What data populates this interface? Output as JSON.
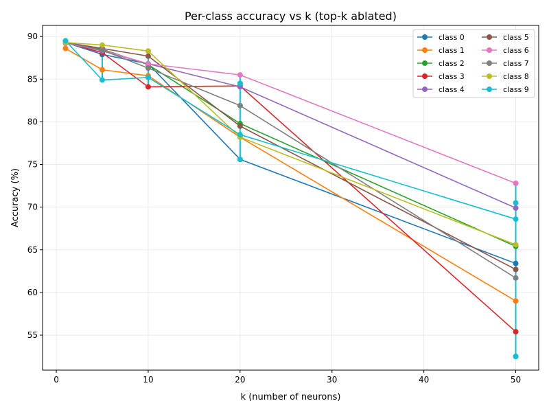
{
  "chart_data": {
    "type": "line",
    "title": "Per-class accuracy vs k (top-k ablated)",
    "xlabel": "k (number of neurons)",
    "ylabel": "Accuracy (%)",
    "xlim": [
      -1.5,
      52.5
    ],
    "ylim": [
      50.9,
      91.3
    ],
    "xticks": [
      0,
      10,
      20,
      30,
      40,
      50
    ],
    "yticks": [
      55,
      60,
      65,
      70,
      75,
      80,
      85,
      90
    ],
    "grid": true,
    "legend_position": "top-right",
    "x": [
      1,
      5,
      10,
      20,
      50
    ],
    "series": [
      {
        "name": "class 0",
        "color": "#1f77b4",
        "values": [
          89.3,
          87.9,
          86.8,
          75.6,
          63.4
        ]
      },
      {
        "name": "class 1",
        "color": "#ff7f0e",
        "values": [
          88.6,
          86.1,
          85.4,
          78.2,
          59.0
        ]
      },
      {
        "name": "class 2",
        "color": "#2ca02c",
        "values": [
          89.3,
          88.5,
          86.7,
          79.8,
          65.4
        ]
      },
      {
        "name": "class 3",
        "color": "#d62728",
        "values": [
          89.3,
          88.1,
          84.1,
          84.2,
          55.4
        ]
      },
      {
        "name": "class 4",
        "color": "#9467bd",
        "values": [
          89.3,
          88.3,
          86.8,
          84.1,
          69.9
        ]
      },
      {
        "name": "class 5",
        "color": "#8c564b",
        "values": [
          89.3,
          88.6,
          87.7,
          79.5,
          62.7
        ]
      },
      {
        "name": "class 6",
        "color": "#e377c2",
        "values": [
          89.2,
          88.4,
          86.8,
          85.5,
          72.8
        ]
      },
      {
        "name": "class 7",
        "color": "#7f7f7f",
        "values": [
          89.3,
          88.4,
          86.3,
          81.9,
          61.7
        ]
      },
      {
        "name": "class 8",
        "color": "#bcbd22",
        "values": [
          89.3,
          89.0,
          88.3,
          78.2,
          65.6
        ]
      },
      {
        "name": "class 9",
        "color": "#17becf",
        "values": [
          89.5,
          84.9,
          85.2,
          78.5,
          68.6
        ]
      }
    ],
    "vertical_connectors": [
      {
        "color": "#17becf",
        "x": 1,
        "from": 88.6,
        "to": 89.5
      },
      {
        "color": "#17becf",
        "x": 5,
        "from": 84.9,
        "to": 89.0
      },
      {
        "color": "#17becf",
        "x": 10,
        "from": 84.1,
        "to": 88.3
      },
      {
        "color": "#17becf",
        "x": 20,
        "from": 75.6,
        "to": 85.5
      },
      {
        "color": "#17becf",
        "x": 50,
        "from": 52.5,
        "to": 72.8
      }
    ],
    "extra_points": [
      {
        "color": "#1f77b4",
        "x": 20,
        "y": 84.5
      },
      {
        "color": "#17becf",
        "x": 20,
        "y": 75.6
      },
      {
        "color": "#17becf",
        "x": 20,
        "y": 84.5
      },
      {
        "color": "#1f77b4",
        "x": 50,
        "y": 52.5
      },
      {
        "color": "#17becf",
        "x": 50,
        "y": 52.5
      },
      {
        "color": "#17becf",
        "x": 50,
        "y": 70.5
      }
    ]
  }
}
